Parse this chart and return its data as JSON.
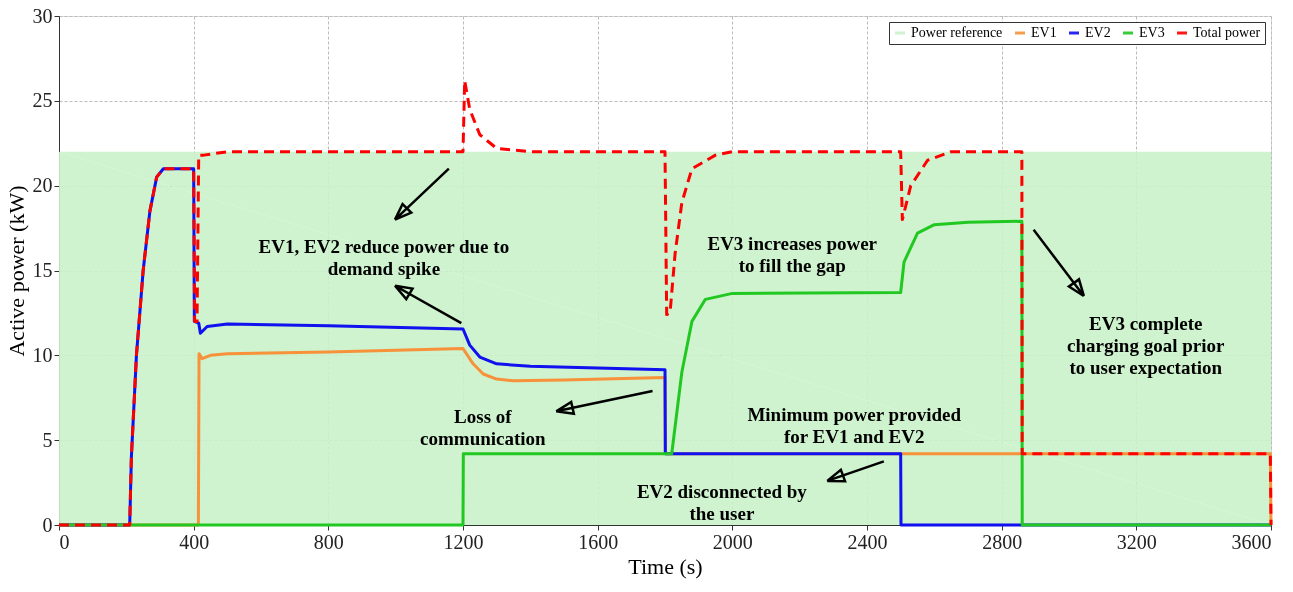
{
  "chart_data": {
    "type": "line",
    "xlabel": "Time (s)",
    "ylabel": "Active power (kW)",
    "xlim": [
      0,
      3600
    ],
    "xticks": [
      0,
      400,
      800,
      1200,
      1600,
      2000,
      2400,
      2800,
      3200,
      3600
    ],
    "ylim": [
      0,
      30
    ],
    "yticks": [
      0,
      5,
      10,
      15,
      20,
      25,
      30
    ],
    "grid": true,
    "legend": "top right",
    "series": [
      {
        "name": "Power reference",
        "type": "area",
        "color": "#c9f2c9",
        "x": [
          0,
          3600
        ],
        "values": [
          22,
          22
        ]
      },
      {
        "name": "EV1",
        "type": "line",
        "color": "#f7923a",
        "line_style": "solid",
        "x": [
          0,
          414,
          416,
          425,
          450,
          500,
          800,
          1200,
          1230,
          1260,
          1300,
          1350,
          1500,
          1800,
          1801,
          2500,
          3598,
          3600
        ],
        "values": [
          0,
          0,
          10.1,
          9.8,
          10.0,
          10.1,
          10.2,
          10.4,
          9.5,
          8.9,
          8.6,
          8.5,
          8.55,
          8.7,
          4.2,
          4.2,
          4.2,
          0
        ]
      },
      {
        "name": "EV2",
        "type": "line",
        "color": "#1010f0",
        "line_style": "solid",
        "x": [
          0,
          210,
          215,
          230,
          250,
          270,
          290,
          310,
          400,
          402,
          415,
          420,
          440,
          500,
          800,
          1200,
          1220,
          1250,
          1300,
          1400,
          1800,
          1801,
          2500,
          2501,
          3600
        ],
        "values": [
          0,
          0,
          4,
          10,
          15,
          18.5,
          20.5,
          21,
          21,
          12,
          11.9,
          11.3,
          11.7,
          11.85,
          11.75,
          11.55,
          10.6,
          9.9,
          9.5,
          9.35,
          9.15,
          4.2,
          4.2,
          0,
          0
        ]
      },
      {
        "name": "EV3",
        "type": "line",
        "color": "#22c822",
        "line_style": "solid",
        "x": [
          0,
          1200,
          1201,
          1820,
          1850,
          1880,
          1920,
          2000,
          2500,
          2510,
          2550,
          2600,
          2700,
          2860,
          2861,
          3600
        ],
        "values": [
          0,
          0,
          4.2,
          4.2,
          9,
          12,
          13.3,
          13.65,
          13.7,
          15.5,
          17.2,
          17.7,
          17.85,
          17.9,
          0,
          0
        ]
      },
      {
        "name": "Total power",
        "type": "line",
        "color": "#ff0000",
        "line_style": "dashed",
        "x": [
          0,
          210,
          215,
          230,
          250,
          270,
          290,
          310,
          400,
          403,
          410,
          415,
          430,
          500,
          1200,
          1205,
          1220,
          1250,
          1300,
          1400,
          1800,
          1805,
          1815,
          1830,
          1850,
          1880,
          1950,
          2000,
          2500,
          2505,
          2530,
          2580,
          2650,
          2860,
          2861,
          3598,
          3600
        ],
        "values": [
          0,
          0,
          4,
          10,
          15,
          18.5,
          20.5,
          21,
          21,
          12,
          12,
          21.8,
          21.8,
          22,
          22,
          26.2,
          24.5,
          23,
          22.2,
          22,
          22,
          12.4,
          12.5,
          16,
          19,
          21,
          21.8,
          22,
          22,
          18,
          20,
          21.5,
          22,
          22,
          4.2,
          4.2,
          0
        ]
      }
    ],
    "annotations": [
      "EV1, EV2 reduce power due to\ndemand spike",
      "Loss of\ncommunication",
      "EV3 increases power\nto fill the gap",
      "EV3 complete\ncharging goal prior\nto user expectation",
      "Minimum power provided\nfor EV1 and EV2",
      "EV2 disconnected by\nthe user"
    ]
  }
}
